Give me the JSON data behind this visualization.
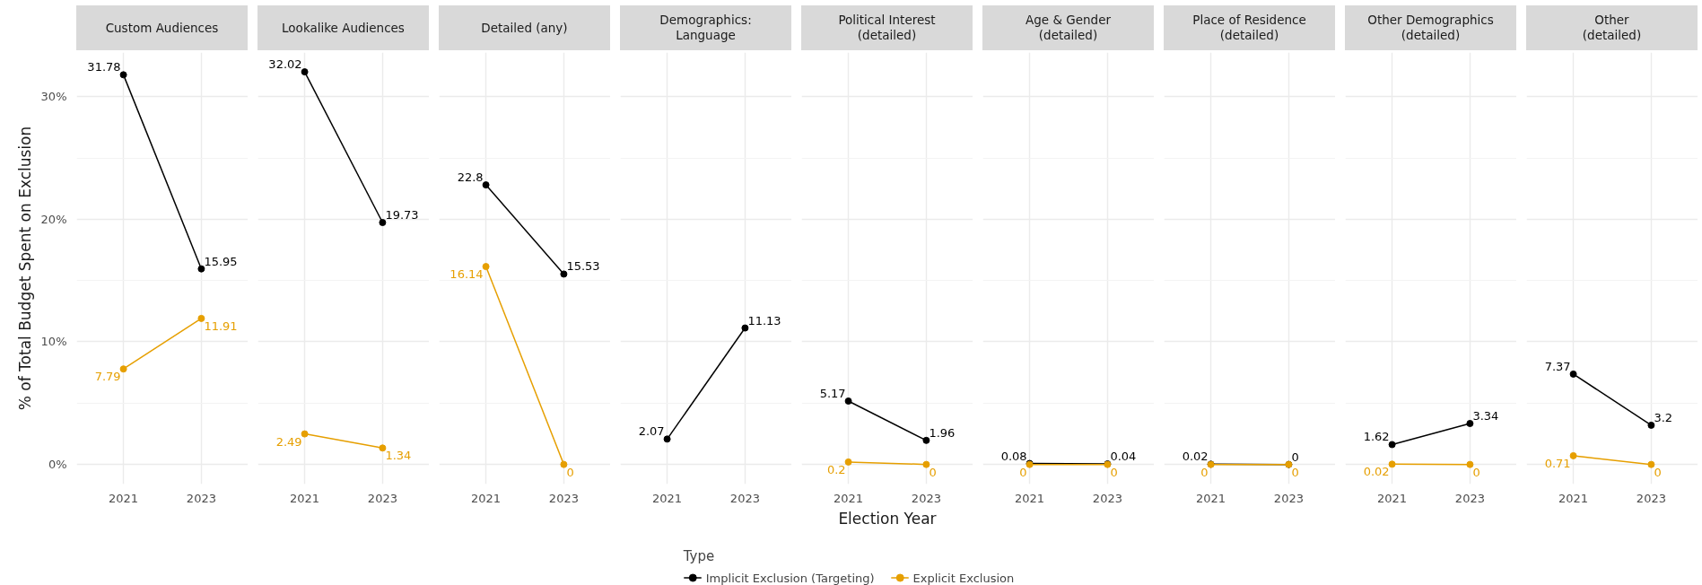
{
  "chart_data": [
    {
      "type": "line",
      "title": "Custom Audiences",
      "ylabel": "% of Total Budget Spent on Exclusion",
      "legend_title": "Type",
      "legend": "bottom",
      "categories": [
        "2021",
        "2023"
      ],
      "ylim": [
        -1.6,
        33.6
      ],
      "yticks": [
        {
          "value": 0,
          "label": "0%"
        },
        {
          "value": 5,
          "label": null
        },
        {
          "value": 10,
          "label": "10%"
        },
        {
          "value": 15,
          "label": null
        },
        {
          "value": 20,
          "label": "20%"
        },
        {
          "value": 25,
          "label": null
        },
        {
          "value": 30,
          "label": "30%"
        }
      ],
      "grid": true,
      "marker": "circle",
      "line_style": "solid",
      "data_labels": true,
      "series": [
        {
          "name": "Implicit Exclusion (Targeting)",
          "color": "#000000",
          "values": [
            31.78,
            15.95
          ]
        },
        {
          "name": "Explicit Exclusion",
          "color": "#e69f00",
          "values": [
            7.79,
            11.91
          ]
        }
      ]
    },
    {
      "type": "line",
      "title": "Lookalike Audiences",
      "categories": [
        "2021",
        "2023"
      ],
      "ylim": [
        -1.6,
        33.6
      ],
      "yticks": [
        0,
        {
          "value": 5,
          "label": null
        },
        10,
        {
          "value": 15,
          "label": null
        },
        20,
        {
          "value": 25,
          "label": null
        },
        30
      ],
      "tick_labels": "x",
      "grid": true,
      "marker": "circle",
      "line_style": "solid",
      "data_labels": true,
      "series": [
        {
          "color": "#000000",
          "values": [
            32.02,
            19.73
          ]
        },
        {
          "color": "#e69f00",
          "values": [
            2.49,
            1.34
          ]
        }
      ]
    },
    {
      "type": "line",
      "title": "Detailed (any)",
      "categories": [
        "2021",
        "2023"
      ],
      "ylim": [
        -1.6,
        33.6
      ],
      "yticks": [
        0,
        {
          "value": 5,
          "label": null
        },
        10,
        {
          "value": 15,
          "label": null
        },
        20,
        {
          "value": 25,
          "label": null
        },
        30
      ],
      "tick_labels": "x",
      "grid": true,
      "marker": "circle",
      "line_style": "solid",
      "data_labels": true,
      "series": [
        {
          "color": "#000000",
          "values": [
            22.8,
            15.53
          ]
        },
        {
          "color": "#e69f00",
          "values": [
            16.14,
            0
          ]
        }
      ]
    },
    {
      "type": "line",
      "title": "Demographics:\nLanguage",
      "categories": [
        "2021",
        "2023"
      ],
      "ylim": [
        -1.6,
        33.6
      ],
      "yticks": [
        0,
        {
          "value": 5,
          "label": null
        },
        10,
        {
          "value": 15,
          "label": null
        },
        20,
        {
          "value": 25,
          "label": null
        },
        30
      ],
      "tick_labels": "x",
      "grid": true,
      "marker": "circle",
      "line_style": "solid",
      "data_labels": true,
      "series": [
        {
          "color": "#000000",
          "values": [
            2.07,
            11.13
          ]
        }
      ]
    },
    {
      "type": "line",
      "title": "Political Interest\n(detailed)",
      "xlabel": "Election Year",
      "categories": [
        "2021",
        "2023"
      ],
      "ylim": [
        -1.6,
        33.6
      ],
      "yticks": [
        0,
        {
          "value": 5,
          "label": null
        },
        10,
        {
          "value": 15,
          "label": null
        },
        20,
        {
          "value": 25,
          "label": null
        },
        30
      ],
      "tick_labels": "x",
      "grid": true,
      "marker": "circle",
      "line_style": "solid",
      "data_labels": true,
      "series": [
        {
          "color": "#000000",
          "values": [
            5.17,
            1.96
          ]
        },
        {
          "color": "#e69f00",
          "values": [
            0.2,
            0
          ]
        }
      ]
    },
    {
      "type": "line",
      "title": "Age & Gender\n(detailed)",
      "categories": [
        "2021",
        "2023"
      ],
      "ylim": [
        -1.6,
        33.6
      ],
      "yticks": [
        0,
        {
          "value": 5,
          "label": null
        },
        10,
        {
          "value": 15,
          "label": null
        },
        20,
        {
          "value": 25,
          "label": null
        },
        30
      ],
      "tick_labels": "x",
      "grid": true,
      "marker": "circle",
      "line_style": "solid",
      "data_labels": true,
      "series": [
        {
          "color": "#000000",
          "values": [
            0.08,
            0.04
          ]
        },
        {
          "color": "#e69f00",
          "values": [
            0,
            0
          ]
        }
      ]
    },
    {
      "type": "line",
      "title": "Place of Residence\n(detailed)",
      "categories": [
        "2021",
        "2023"
      ],
      "ylim": [
        -1.6,
        33.6
      ],
      "yticks": [
        0,
        {
          "value": 5,
          "label": null
        },
        10,
        {
          "value": 15,
          "label": null
        },
        20,
        {
          "value": 25,
          "label": null
        },
        30
      ],
      "tick_labels": "x",
      "grid": true,
      "marker": "circle",
      "line_style": "solid",
      "data_labels": true,
      "series": [
        {
          "color": "#000000",
          "values": [
            0.02,
            0
          ]
        },
        {
          "color": "#e69f00",
          "values": [
            0,
            0
          ]
        }
      ]
    },
    {
      "type": "line",
      "title": "Other Demographics\n(detailed)",
      "categories": [
        "2021",
        "2023"
      ],
      "ylim": [
        -1.6,
        33.6
      ],
      "yticks": [
        0,
        {
          "value": 5,
          "label": null
        },
        10,
        {
          "value": 15,
          "label": null
        },
        20,
        {
          "value": 25,
          "label": null
        },
        30
      ],
      "tick_labels": "x",
      "grid": true,
      "marker": "circle",
      "line_style": "solid",
      "data_labels": true,
      "series": [
        {
          "color": "#000000",
          "values": [
            1.62,
            3.34
          ]
        },
        {
          "color": "#e69f00",
          "values": [
            0.02,
            0
          ]
        }
      ]
    },
    {
      "type": "line",
      "title": "Other\n(detailed)",
      "categories": [
        "2021",
        "2023"
      ],
      "ylim": [
        -1.6,
        33.6
      ],
      "yticks": [
        0,
        {
          "value": 5,
          "label": null
        },
        10,
        {
          "value": 15,
          "label": null
        },
        20,
        {
          "value": 25,
          "label": null
        },
        30
      ],
      "tick_labels": "x",
      "grid": true,
      "marker": "circle",
      "line_style": "solid",
      "data_labels": true,
      "series": [
        {
          "color": "#000000",
          "values": [
            7.37,
            3.2
          ]
        },
        {
          "color": "#e69f00",
          "values": [
            0.71,
            0
          ]
        }
      ]
    }
  ]
}
